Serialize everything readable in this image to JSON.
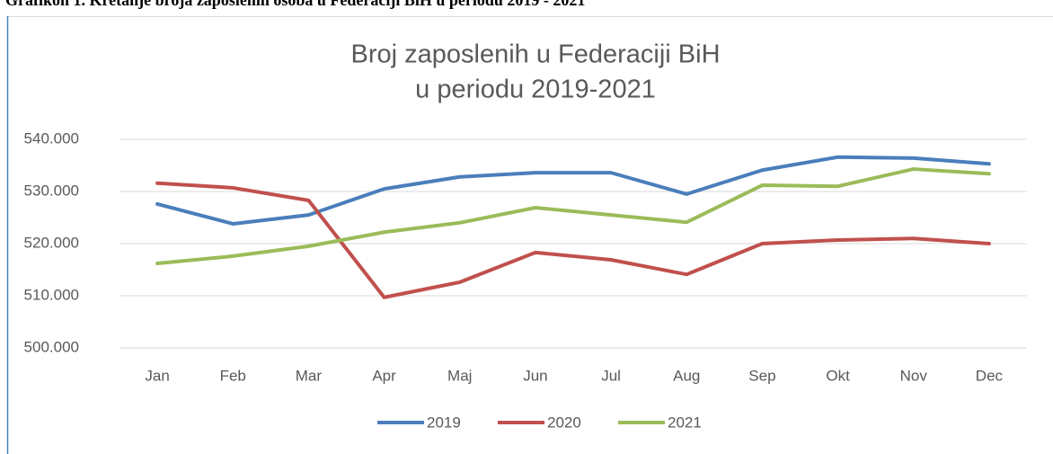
{
  "caption": "Grafikon 1. Kretanje broja zaposlenih osoba u Federaciji BiH u periodu 2019 - 2021",
  "chart_data": {
    "type": "line",
    "title": [
      "Broj zaposlenih u Federaciji BiH",
      "u periodu 2019-2021"
    ],
    "categories": [
      "Jan",
      "Feb",
      "Mar",
      "Apr",
      "Maj",
      "Jun",
      "Jul",
      "Aug",
      "Sep",
      "Okt",
      "Nov",
      "Dec"
    ],
    "series": [
      {
        "name": "2019",
        "color": "#4a7ebb",
        "values": [
          527600,
          523800,
          525500,
          530500,
          532800,
          533600,
          533600,
          529500,
          534100,
          536600,
          536400,
          535300
        ]
      },
      {
        "name": "2020",
        "color": "#c0504d",
        "values": [
          531600,
          530700,
          528300,
          509700,
          512600,
          518300,
          516900,
          514100,
          520000,
          520700,
          521000,
          520000
        ]
      },
      {
        "name": "2021",
        "color": "#9bbb59",
        "values": [
          516200,
          517600,
          519500,
          522200,
          524000,
          526900,
          525500,
          524100,
          531200,
          531000,
          534300,
          533400
        ]
      }
    ],
    "ylim": [
      500000,
      540000
    ],
    "yticks": [
      {
        "value": 500000,
        "label": "500.000"
      },
      {
        "value": 510000,
        "label": "510.000"
      },
      {
        "value": 520000,
        "label": "520.000"
      },
      {
        "value": 530000,
        "label": "530.000"
      },
      {
        "value": 540000,
        "label": "540.000"
      }
    ],
    "grid": true,
    "legend": "bottom"
  }
}
